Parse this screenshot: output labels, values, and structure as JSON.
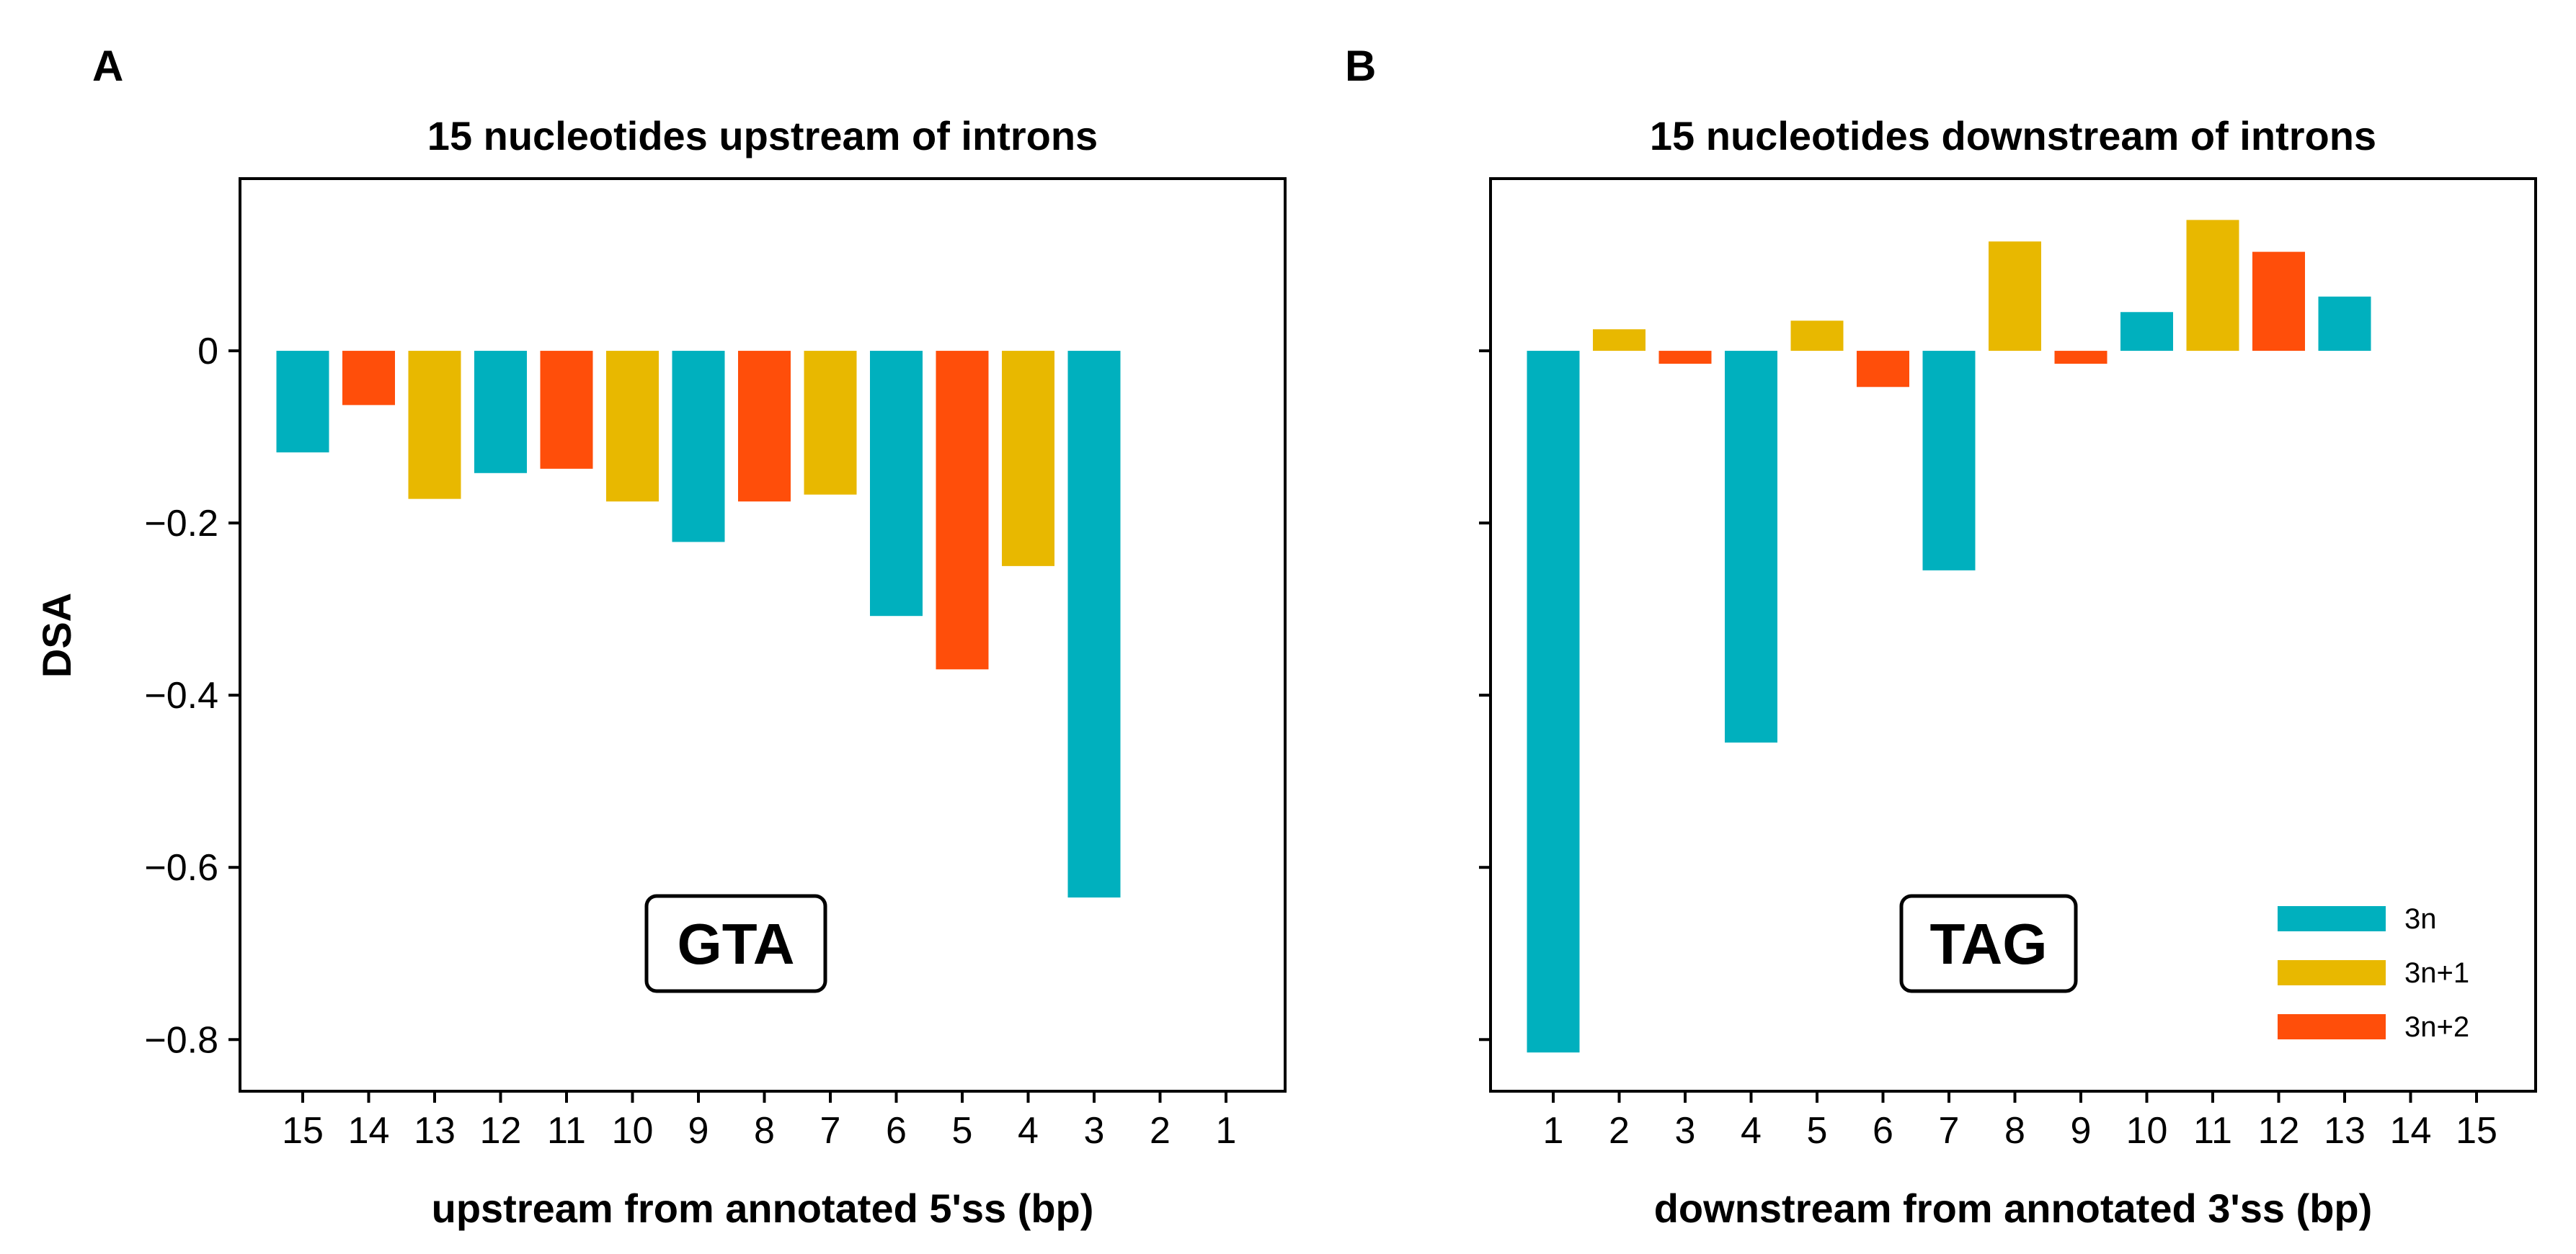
{
  "colors": {
    "3n": "#00B0BE",
    "3n+1": "#E8B800",
    "3n+2": "#FF4E0A"
  },
  "y_axis_label": "DSA",
  "chart_data": [
    {
      "type": "bar",
      "panel_letter": "A",
      "title": "15 nucleotides upstream of introns",
      "xlabel": "upstream from annotated 5'ss (bp)",
      "ylabel": "DSA",
      "ylim": [
        -0.86,
        0.2
      ],
      "yticks": [
        0,
        -0.2,
        -0.4,
        -0.6,
        -0.8
      ],
      "ytick_labels": [
        "0",
        "−0.2",
        "−0.4",
        "−0.6",
        "−0.8"
      ],
      "categories": [
        "15",
        "14",
        "13",
        "12",
        "11",
        "10",
        "9",
        "8",
        "7",
        "6",
        "5",
        "4",
        "3",
        "2",
        "1"
      ],
      "values": [
        -0.118,
        -0.063,
        -0.172,
        -0.142,
        -0.137,
        -0.175,
        -0.222,
        -0.175,
        -0.167,
        -0.308,
        -0.37,
        -0.25,
        -0.635,
        null,
        null
      ],
      "groups": [
        "3n",
        "3n+2",
        "3n+1",
        "3n",
        "3n+2",
        "3n+1",
        "3n",
        "3n+2",
        "3n+1",
        "3n",
        "3n+2",
        "3n+1",
        "3n",
        "3n+2",
        "3n+1"
      ],
      "annotation": "GTA"
    },
    {
      "type": "bar",
      "panel_letter": "B",
      "title": "15 nucleotides downstream of introns",
      "xlabel": "downstream from annotated 3'ss (bp)",
      "ylabel": "",
      "ylim": [
        -0.86,
        0.2
      ],
      "yticks": [
        0,
        -0.2,
        -0.4,
        -0.6,
        -0.8
      ],
      "ytick_labels": [],
      "categories": [
        "1",
        "2",
        "3",
        "4",
        "5",
        "6",
        "7",
        "8",
        "9",
        "10",
        "11",
        "12",
        "13",
        "14",
        "15"
      ],
      "values": [
        -0.815,
        0.025,
        -0.015,
        -0.455,
        0.035,
        -0.042,
        -0.255,
        0.127,
        -0.015,
        0.045,
        0.152,
        0.115,
        0.063,
        null,
        null
      ],
      "groups": [
        "3n",
        "3n+1",
        "3n+2",
        "3n",
        "3n+1",
        "3n+2",
        "3n",
        "3n+1",
        "3n+2",
        "3n",
        "3n+1",
        "3n+2",
        "3n",
        "3n+1",
        "3n+2"
      ],
      "annotation": "TAG",
      "legend": {
        "placement": "lower-right",
        "entries": [
          "3n",
          "3n+1",
          "3n+2"
        ]
      }
    }
  ]
}
